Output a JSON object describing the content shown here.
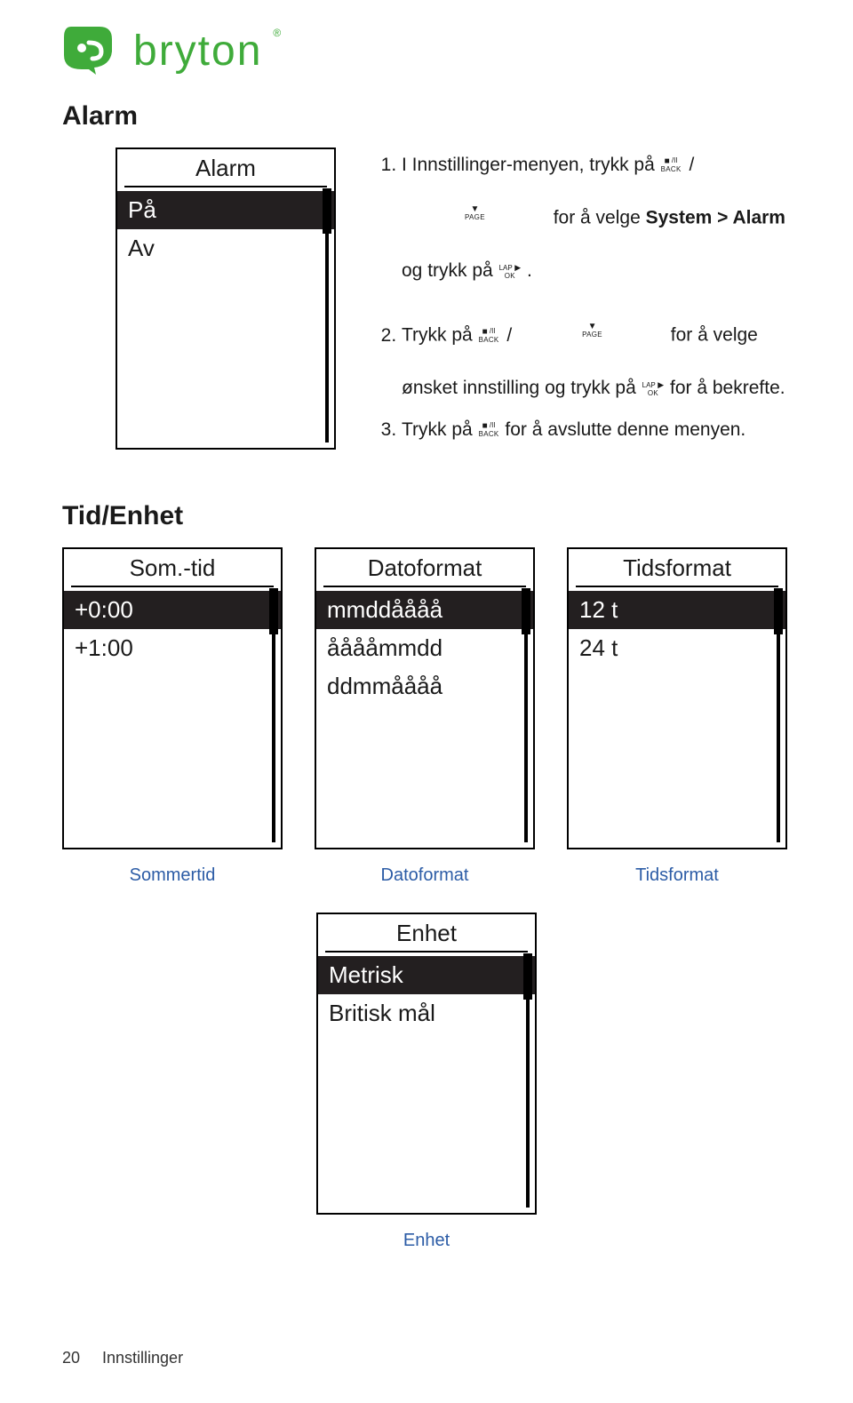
{
  "brand": {
    "name": "bryton"
  },
  "alarm": {
    "heading": "Alarm",
    "device": {
      "title": "Alarm",
      "options": [
        "På",
        "Av"
      ],
      "selected_index": 0,
      "thumb_top_pct": 0,
      "thumb_height_pct": 18
    },
    "instr": {
      "i1a": "I Innstillinger-menyen, trykk på ",
      "i1b": " for å velge ",
      "i1c": "System > Alarm",
      "i1d": " og trykk på ",
      "i1e": ".",
      "i2a": "Trykk på ",
      "i2b": " for å velge ønsket innstilling og trykk på ",
      "i2c": " for å bekrefte.",
      "i3a": "Trykk på ",
      "i3b": " for å avslutte denne menyen."
    },
    "icons": {
      "back_label": "BACK",
      "page_label": "PAGE",
      "ok_label": "OK"
    }
  },
  "tid": {
    "heading": "Tid/Enhet",
    "somtid": {
      "title": "Som.-tid",
      "options": [
        "+0:00",
        "+1:00"
      ],
      "selected_index": 0,
      "caption": "Sommertid",
      "thumb_top_pct": 0,
      "thumb_height_pct": 18
    },
    "datoformat": {
      "title": "Datoformat",
      "options": [
        "mmddåååå",
        "ååååmmdd",
        "ddmmåååå"
      ],
      "selected_index": 0,
      "caption": "Datoformat",
      "thumb_top_pct": 0,
      "thumb_height_pct": 18
    },
    "tidsformat": {
      "title": "Tidsformat",
      "options": [
        "12 t",
        "24 t"
      ],
      "selected_index": 0,
      "caption": "Tidsformat",
      "thumb_top_pct": 0,
      "thumb_height_pct": 18
    },
    "enhet": {
      "title": "Enhet",
      "options": [
        "Metrisk",
        "Britisk mål"
      ],
      "selected_index": 0,
      "caption": "Enhet",
      "thumb_top_pct": 0,
      "thumb_height_pct": 18
    }
  },
  "footer": {
    "page": "20",
    "section": "Innstillinger"
  },
  "colors": {
    "brand_green": "#3fab3a",
    "link_blue": "#2c5ca6",
    "selected_bg": "#231f20"
  }
}
